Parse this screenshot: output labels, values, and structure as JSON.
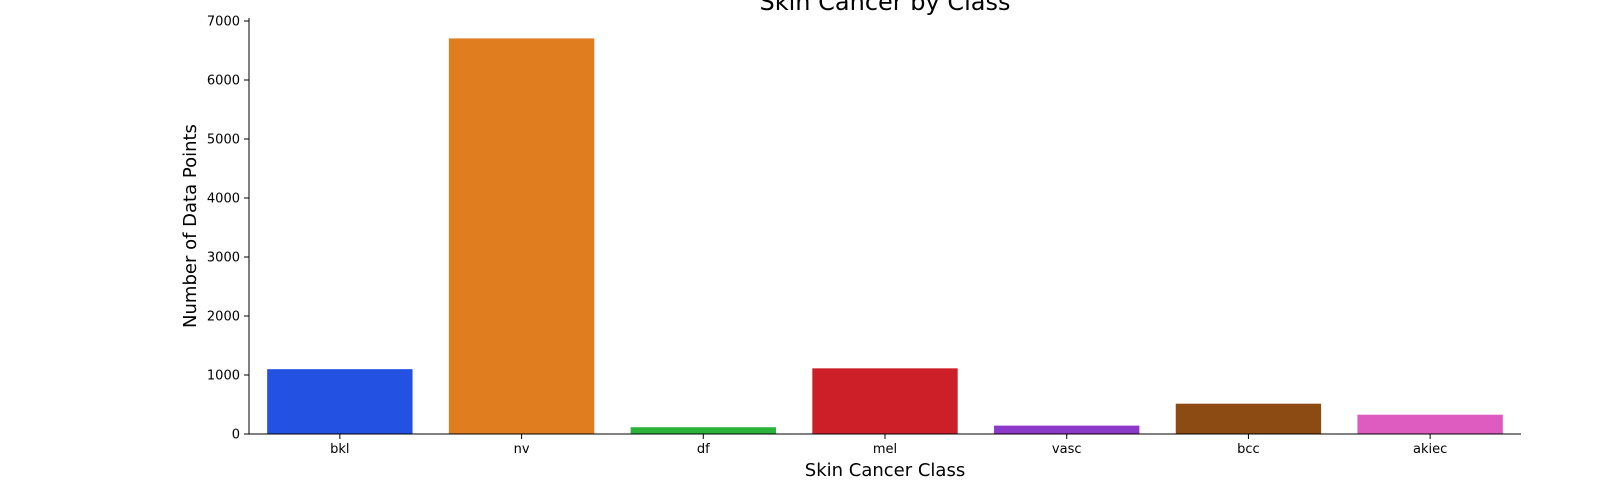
{
  "chart_data": {
    "type": "bar",
    "title": "Skin Cancer by Class",
    "xlabel": "Skin Cancer Class",
    "ylabel": "Number of Data Points",
    "categories": [
      "bkl",
      "nv",
      "df",
      "mel",
      "vasc",
      "bcc",
      "akiec"
    ],
    "values": [
      1099,
      6705,
      115,
      1113,
      142,
      514,
      327
    ],
    "colors": [
      "#2351e2",
      "#e07d1e",
      "#2bb23b",
      "#cc1f27",
      "#8c38c9",
      "#8b4b12",
      "#de5bbf"
    ],
    "ylim": [
      0,
      7000
    ],
    "yticks": [
      0,
      1000,
      2000,
      3000,
      4000,
      5000,
      6000,
      7000
    ],
    "grid": false,
    "legend": "none"
  }
}
